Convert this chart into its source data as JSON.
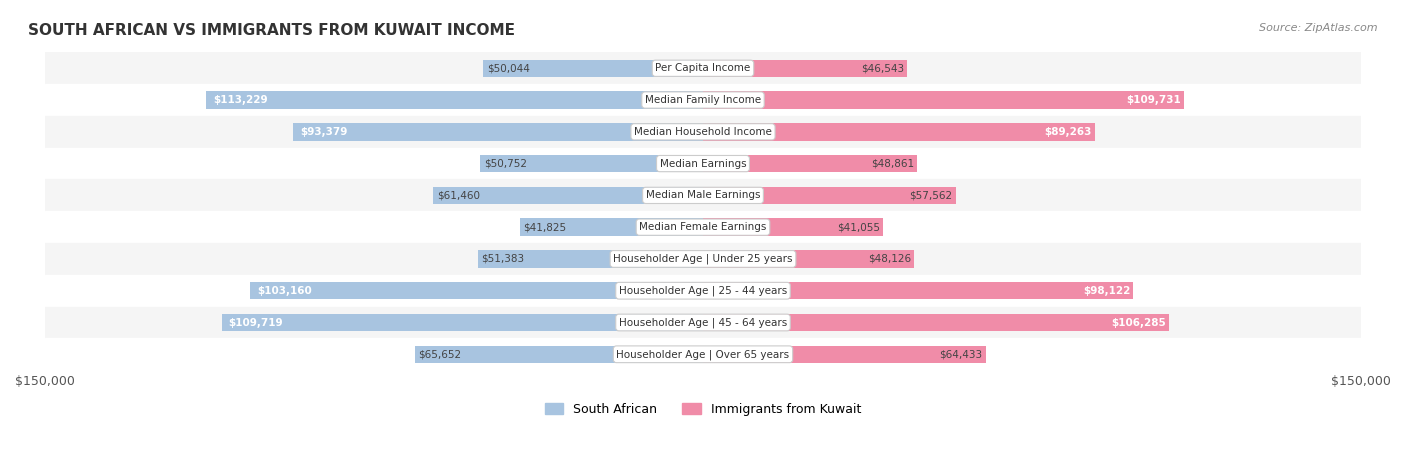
{
  "title": "SOUTH AFRICAN VS IMMIGRANTS FROM KUWAIT INCOME",
  "source": "Source: ZipAtlas.com",
  "categories": [
    "Per Capita Income",
    "Median Family Income",
    "Median Household Income",
    "Median Earnings",
    "Median Male Earnings",
    "Median Female Earnings",
    "Householder Age | Under 25 years",
    "Householder Age | 25 - 44 years",
    "Householder Age | 45 - 64 years",
    "Householder Age | Over 65 years"
  ],
  "south_african": [
    50044,
    113229,
    93379,
    50752,
    61460,
    41825,
    51383,
    103160,
    109719,
    65652
  ],
  "kuwait": [
    46543,
    109731,
    89263,
    48861,
    57562,
    41055,
    48126,
    98122,
    106285,
    64433
  ],
  "south_african_labels": [
    "$50,044",
    "$113,229",
    "$93,379",
    "$50,752",
    "$61,460",
    "$41,825",
    "$51,383",
    "$103,160",
    "$109,719",
    "$65,652"
  ],
  "kuwait_labels": [
    "$46,543",
    "$109,731",
    "$89,263",
    "$48,861",
    "$57,562",
    "$41,055",
    "$48,126",
    "$98,122",
    "$106,285",
    "$64,433"
  ],
  "color_south_african": "#a8c4e0",
  "color_kuwait": "#f08ca8",
  "color_south_african_dark": "#6699cc",
  "color_kuwait_dark": "#e85580",
  "max_val": 150000,
  "bg_color": "#ffffff",
  "row_bg_light": "#f5f5f5",
  "row_bg_white": "#ffffff",
  "label_threshold": 80000
}
